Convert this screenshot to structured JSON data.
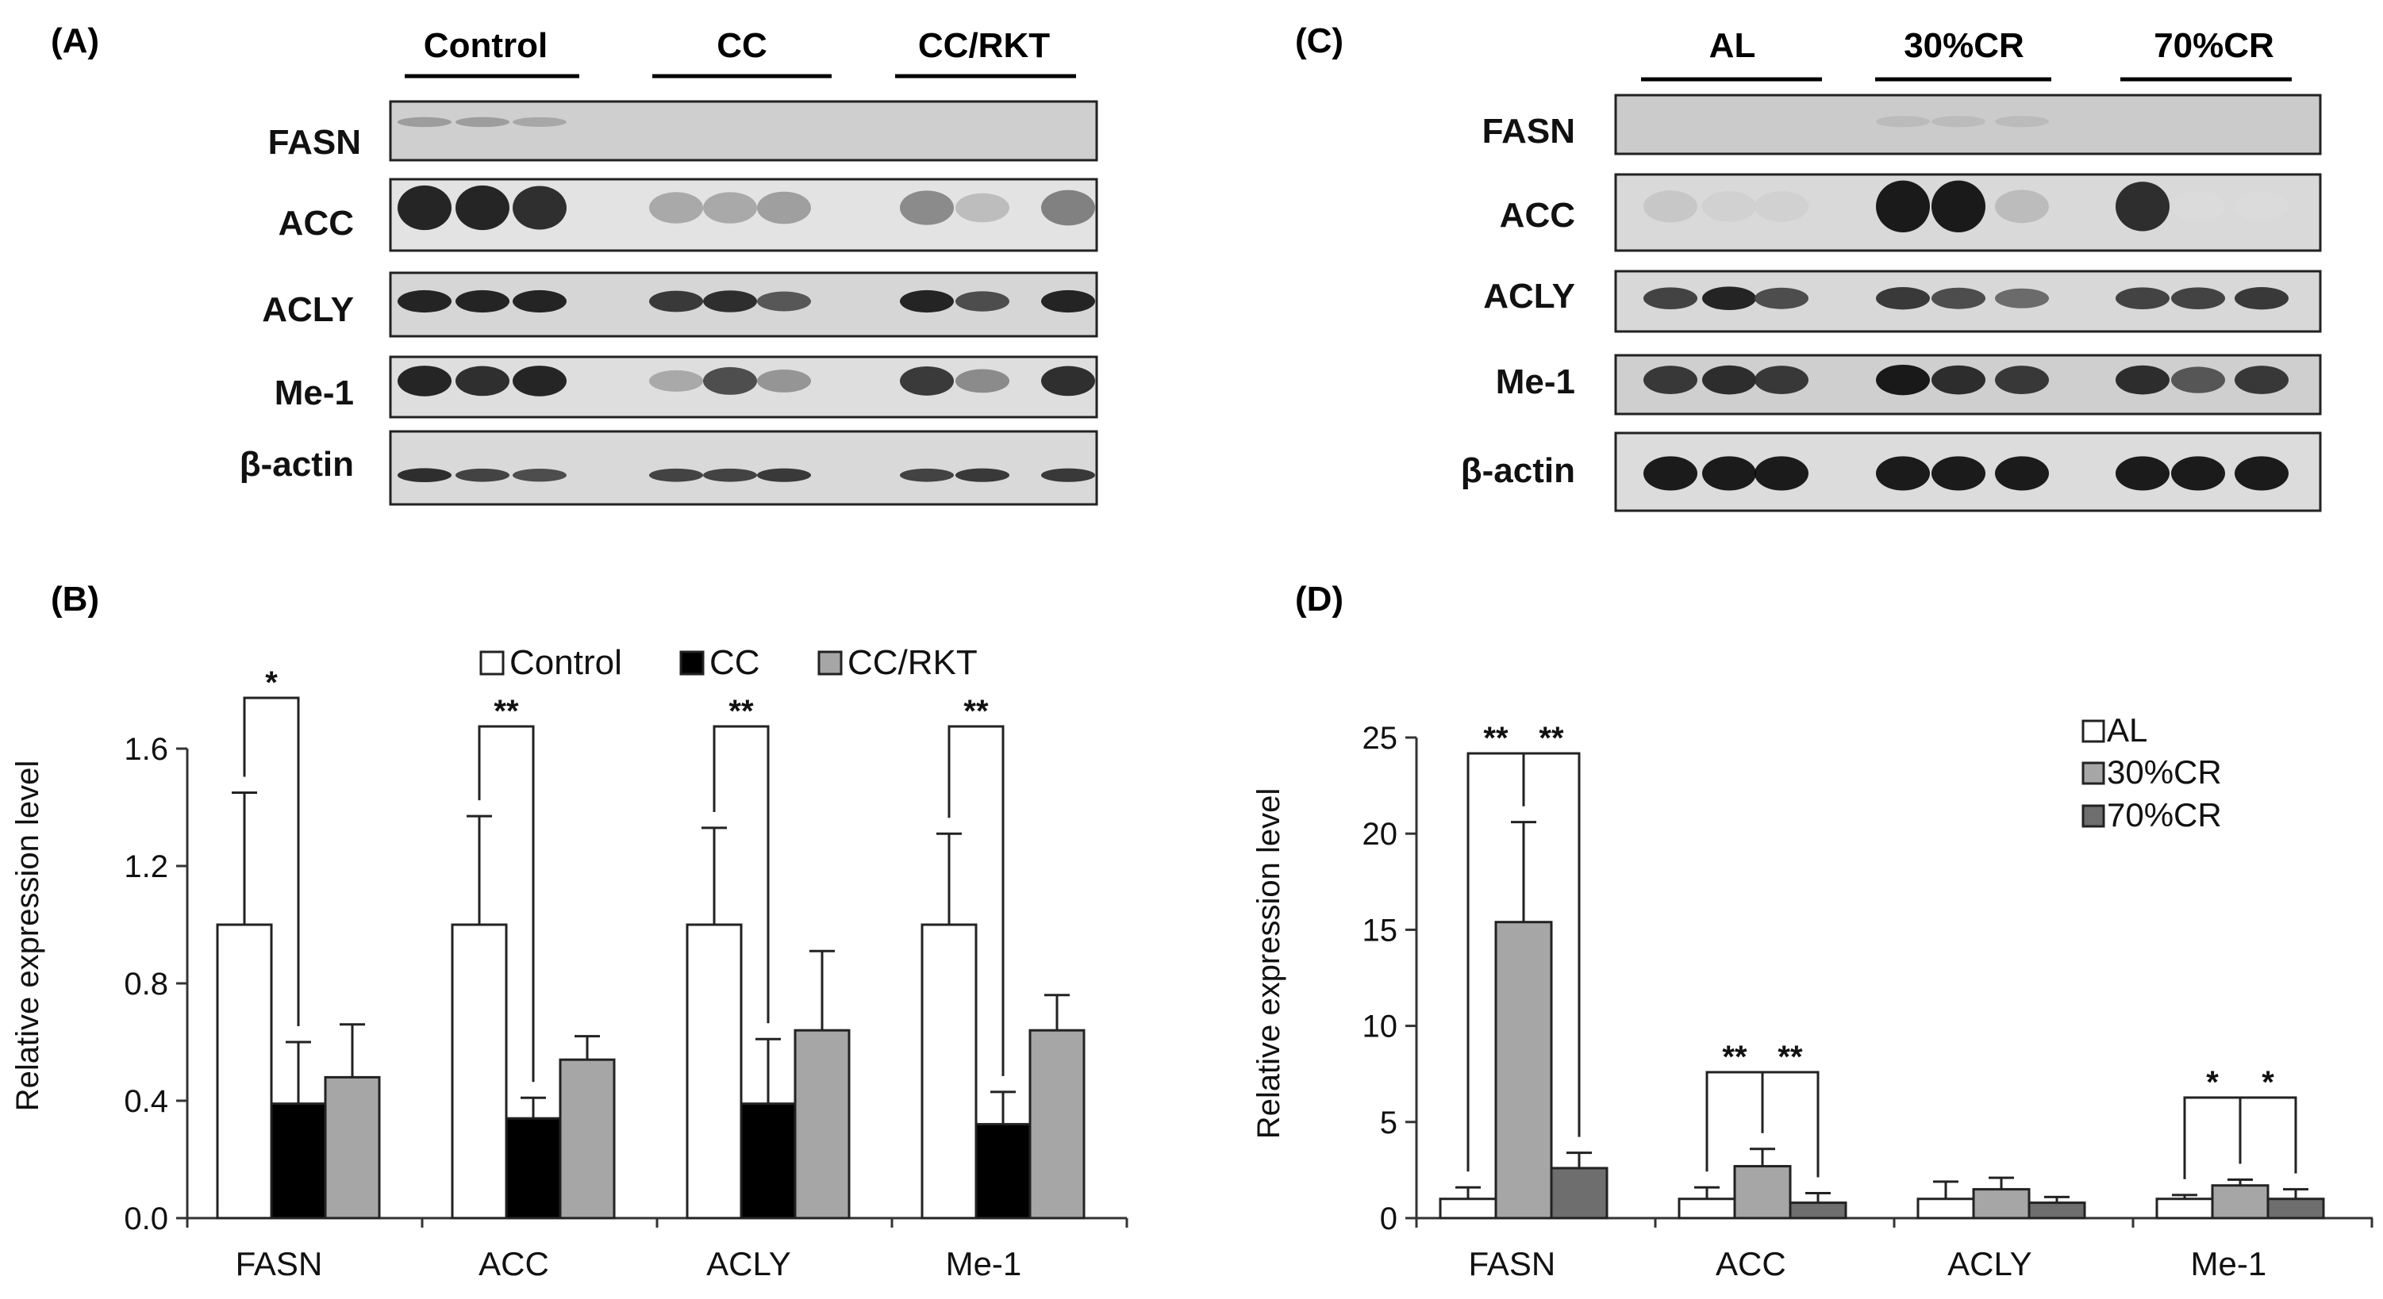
{
  "panels": {
    "A": "(A)",
    "B": "(B)",
    "C": "(C)",
    "D": "(D)"
  },
  "blot_A": {
    "groups": [
      "Control",
      "CC",
      "CC/RKT"
    ],
    "proteins": [
      "FASN",
      "ACC",
      "ACLY",
      "Me-1",
      "β-actin"
    ],
    "band_intensity": {
      "FASN": [
        0.35,
        0.35,
        0.3,
        0,
        0,
        0,
        0,
        0,
        0
      ],
      "ACC": [
        0.95,
        0.95,
        0.9,
        0.3,
        0.3,
        0.35,
        0.45,
        0.2,
        0.5
      ],
      "ACLY": [
        0.95,
        0.95,
        0.95,
        0.85,
        0.9,
        0.7,
        0.95,
        0.75,
        0.95
      ],
      "Me-1": [
        0.95,
        0.9,
        0.95,
        0.3,
        0.75,
        0.4,
        0.85,
        0.45,
        0.9
      ],
      "β-actin": [
        0.9,
        0.8,
        0.75,
        0.8,
        0.8,
        0.85,
        0.8,
        0.85,
        0.85
      ]
    }
  },
  "blot_C": {
    "groups": [
      "AL",
      "30%CR",
      "70%CR"
    ],
    "proteins": [
      "FASN",
      "ACC",
      "ACLY",
      "Me-1",
      "β-actin"
    ],
    "band_intensity": {
      "FASN": [
        0,
        0,
        0,
        0.2,
        0.2,
        0.2,
        0,
        0,
        0
      ],
      "ACC": [
        0.15,
        0.1,
        0.1,
        1.0,
        1.0,
        0.2,
        0.9,
        0.05,
        0.05
      ],
      "ACLY": [
        0.8,
        0.95,
        0.75,
        0.85,
        0.75,
        0.6,
        0.8,
        0.8,
        0.85
      ],
      "Me-1": [
        0.85,
        0.9,
        0.85,
        1.0,
        0.9,
        0.85,
        0.9,
        0.7,
        0.85
      ],
      "β-actin": [
        1.0,
        1.0,
        1.0,
        1.0,
        1.0,
        1.0,
        1.0,
        1.0,
        1.0
      ]
    }
  },
  "chart_data": [
    {
      "type": "bar",
      "panel": "B",
      "ylabel": "Relative expression level",
      "ylim": [
        0,
        1.6
      ],
      "yticks": [
        "0.0",
        "0.4",
        "0.8",
        "1.2",
        "1.6"
      ],
      "categories": [
        "FASN",
        "ACC",
        "ACLY",
        "Me-1"
      ],
      "series": [
        {
          "name": "Control",
          "color": "#ffffff",
          "values": [
            1.0,
            1.0,
            1.0,
            1.0
          ],
          "errors": [
            0.45,
            0.37,
            0.33,
            0.31
          ]
        },
        {
          "name": "CC",
          "color": "#000000",
          "values": [
            0.39,
            0.34,
            0.39,
            0.32
          ],
          "errors": [
            0.21,
            0.07,
            0.22,
            0.11
          ]
        },
        {
          "name": "CC/RKT",
          "color": "#a6a6a6",
          "values": [
            0.48,
            0.54,
            0.64,
            0.64
          ],
          "errors": [
            0.18,
            0.08,
            0.27,
            0.12
          ]
        }
      ],
      "significance": [
        {
          "category": "FASN",
          "from": "Control",
          "to": "CC",
          "label": "*"
        },
        {
          "category": "ACC",
          "from": "Control",
          "to": "CC",
          "label": "**"
        },
        {
          "category": "ACLY",
          "from": "Control",
          "to": "CC",
          "label": "**"
        },
        {
          "category": "Me-1",
          "from": "Control",
          "to": "CC",
          "label": "**"
        }
      ],
      "legend_position": "top"
    },
    {
      "type": "bar",
      "panel": "D",
      "ylabel": "Relative expression level",
      "ylim": [
        0,
        25
      ],
      "yticks": [
        "0",
        "5",
        "10",
        "15",
        "20",
        "25"
      ],
      "categories": [
        "FASN",
        "ACC",
        "ACLY",
        "Me-1"
      ],
      "series": [
        {
          "name": "AL",
          "color": "#ffffff",
          "values": [
            1.0,
            1.0,
            1.0,
            1.0
          ],
          "errors": [
            0.6,
            0.6,
            0.9,
            0.2
          ]
        },
        {
          "name": "30%CR",
          "color": "#a6a6a6",
          "values": [
            15.4,
            2.7,
            1.5,
            1.7
          ],
          "errors": [
            5.2,
            0.9,
            0.6,
            0.3
          ]
        },
        {
          "name": "70%CR",
          "color": "#6e6e6e",
          "values": [
            2.6,
            0.8,
            0.8,
            1.0
          ],
          "errors": [
            0.8,
            0.5,
            0.3,
            0.5
          ]
        }
      ],
      "significance": [
        {
          "category": "FASN",
          "from": "AL",
          "to": "30%CR",
          "label": "**"
        },
        {
          "category": "FASN",
          "from": "30%CR",
          "to": "70%CR",
          "label": "**"
        },
        {
          "category": "ACC",
          "from": "AL",
          "to": "30%CR",
          "label": "**"
        },
        {
          "category": "ACC",
          "from": "30%CR",
          "to": "70%CR",
          "label": "**"
        },
        {
          "category": "Me-1",
          "from": "AL",
          "to": "30%CR",
          "label": "*"
        },
        {
          "category": "Me-1",
          "from": "30%CR",
          "to": "70%CR",
          "label": "*"
        }
      ],
      "legend_position": "top-right"
    }
  ]
}
